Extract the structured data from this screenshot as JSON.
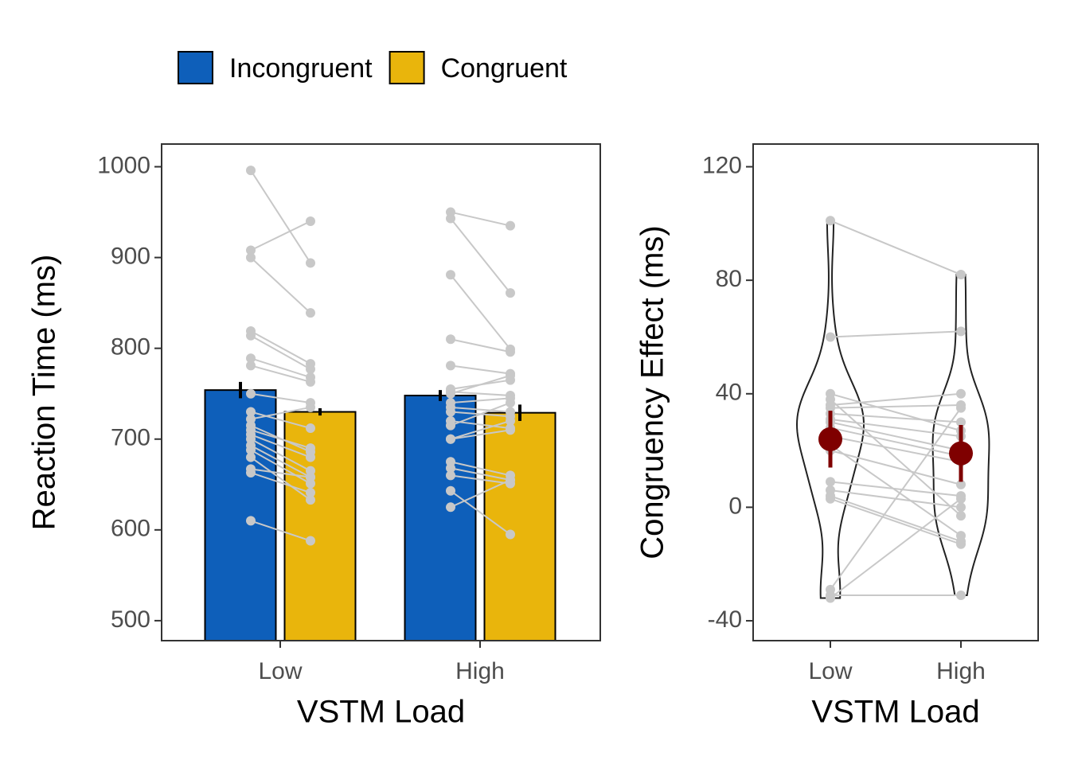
{
  "chart_data": [
    {
      "type": "bar",
      "xlabel": "VSTM Load",
      "ylabel": "Reaction Time (ms)",
      "categories": [
        "Low",
        "High"
      ],
      "legend": "top",
      "series": [
        {
          "name": "Incongruent",
          "color": "#0e5fba",
          "values": [
            754,
            748
          ],
          "errors": [
            9,
            6
          ],
          "points": [
            [
              996,
              908,
              900,
              819,
              814,
              789,
              781,
              750,
              730,
              722,
              715,
              710,
              705,
              700,
              693,
              688,
              680,
              667,
              663,
              610
            ],
            [
              950,
              943,
              881,
              810,
              781,
              755,
              752,
              740,
              735,
              730,
              720,
              700,
              675,
              668,
              660,
              643,
              625,
              750,
              715,
              700
            ]
          ]
        },
        {
          "name": "Congruent",
          "color": "#e9b50c",
          "values": [
            730,
            729
          ],
          "errors": [
            4,
            9
          ],
          "points": [
            [
              894,
              940,
              839,
              783,
              777,
              768,
              763,
              740,
              712,
              735,
              686,
              690,
              680,
              665,
              658,
              651,
              633,
              658,
              641,
              588
            ],
            [
              935,
              861,
              799,
              796,
              772,
              765,
              748,
              745,
              730,
              725,
              712,
              710,
              660,
              655,
              651,
              595,
              655,
              770,
              740,
              720
            ]
          ]
        }
      ],
      "point_color": "#c8c8c8",
      "ylim": [
        478,
        1025
      ],
      "yticks": [
        500,
        600,
        700,
        800,
        900,
        1000
      ]
    },
    {
      "type": "violin",
      "xlabel": "VSTM Load",
      "ylabel": "Congruency Effect (ms)",
      "categories": [
        "Low",
        "High"
      ],
      "values": [
        [
          101,
          60,
          40,
          38,
          36,
          35,
          33,
          31,
          30,
          28,
          25,
          22,
          20,
          9,
          6,
          4,
          3,
          -29,
          -31,
          -32
        ],
        [
          82,
          62,
          27,
          -3,
          40,
          36,
          30,
          25,
          20,
          18,
          16,
          -10,
          8,
          4,
          0,
          -12,
          -13,
          35,
          -31,
          3
        ]
      ],
      "means": [
        24,
        19
      ],
      "errors": [
        10,
        10
      ],
      "mean_color": "#7f0000",
      "point_color": "#c8c8c8",
      "ylim": [
        -47,
        128
      ],
      "yticks": [
        -40,
        0,
        40,
        80,
        120
      ]
    }
  ]
}
